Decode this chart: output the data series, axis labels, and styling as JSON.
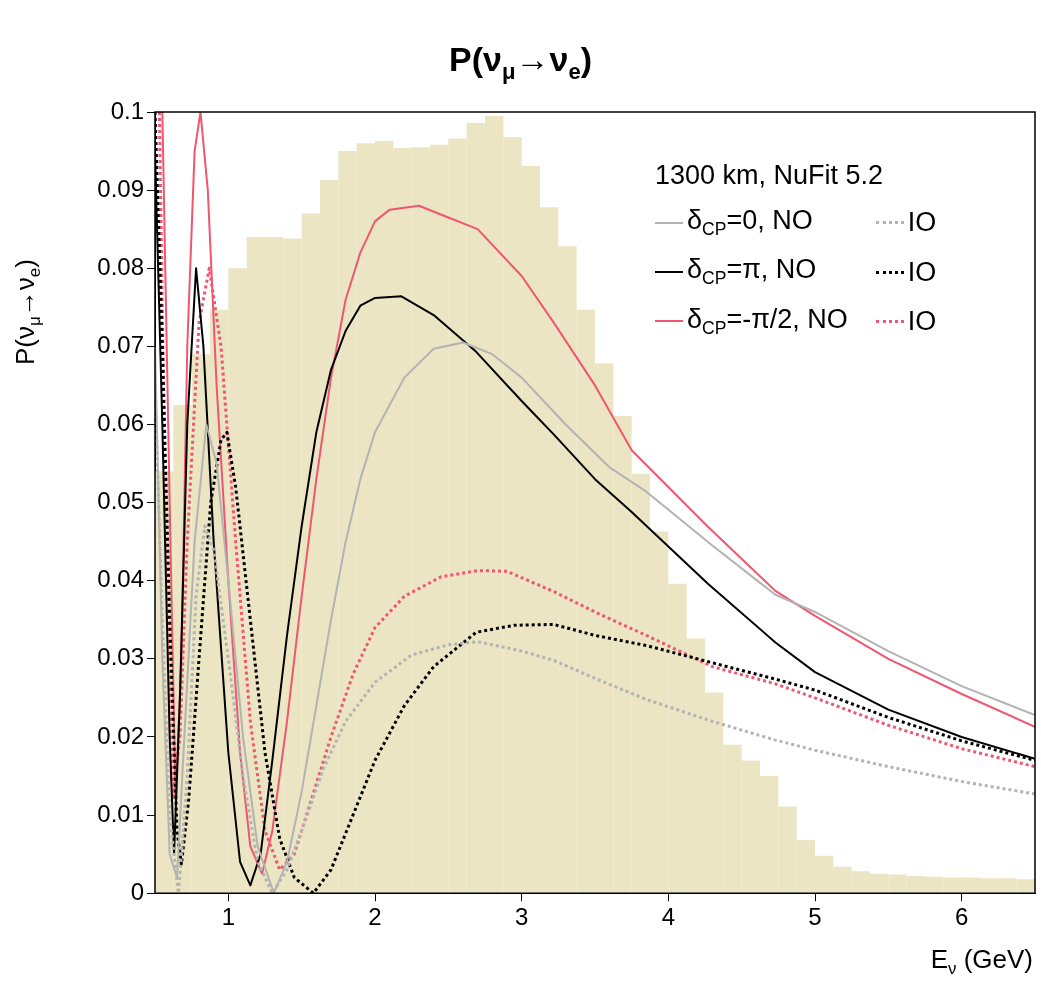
{
  "chart_data": {
    "type": "line",
    "title": "P(ν$_{μ}$→ν$_{e}$)",
    "xlabel": "E$_{ν}$ (GeV)",
    "ylabel": "P(ν$_{μ}$→ν$_{e}$)",
    "legend_title": "1300 km, NuFit 5.2",
    "legend": "top right",
    "grid": false,
    "xlim": [
      0.5,
      6.5
    ],
    "xticks": [
      1,
      2,
      3,
      4,
      5,
      6
    ],
    "ylim": [
      0,
      0.1
    ],
    "yticks": [
      0,
      0.01,
      0.02,
      0.03,
      0.04,
      0.05,
      0.06,
      0.07,
      0.08,
      0.09,
      0.1
    ],
    "series": [
      {
        "type": "histogram",
        "color": "#ebe5c3",
        "bins": [
          0.5,
          0.625,
          0.75,
          0.875,
          1,
          1.125,
          1.25,
          1.375,
          1.5,
          1.625,
          1.75,
          1.875,
          2,
          2.125,
          2.25,
          2.375,
          2.5,
          2.625,
          2.75,
          2.875,
          3,
          3.125,
          3.25,
          3.375,
          3.5,
          3.625,
          3.75,
          3.875,
          4,
          4.125,
          4.25,
          4.375,
          4.5,
          4.625,
          4.75,
          4.875,
          5,
          5.125,
          5.25,
          5.375,
          5.5,
          5.625,
          5.75,
          5.875,
          6,
          6.125,
          6.25,
          6.375,
          6.5
        ],
        "values": [
          0.054,
          0.0625,
          0.069,
          0.0747,
          0.08,
          0.084,
          0.084,
          0.0838,
          0.087,
          0.0913,
          0.095,
          0.096,
          0.0963,
          0.0954,
          0.0955,
          0.0958,
          0.0966,
          0.0986,
          0.0995,
          0.0968,
          0.0931,
          0.0878,
          0.0828,
          0.0747,
          0.0678,
          0.0611,
          0.0537,
          0.0463,
          0.0396,
          0.0326,
          0.0257,
          0.019,
          0.017,
          0.015,
          0.0111,
          0.0068,
          0.0048,
          0.0034,
          0.0028,
          0.0025,
          0.0024,
          0.0022,
          0.0021,
          0.002,
          0.002,
          0.0019,
          0.0019,
          0.0018
        ]
      },
      {
        "name": "δ$_{CP}$=0, NO",
        "color": "#b3b3b3",
        "line_style": "solid",
        "x": [
          0.5,
          0.55,
          0.6,
          0.65,
          0.7,
          0.77,
          0.85,
          0.92,
          1.0,
          1.1,
          1.2,
          1.31,
          1.4,
          1.5,
          1.6,
          1.7,
          1.8,
          1.9,
          2.0,
          2.2,
          2.4,
          2.6,
          2.8,
          3.0,
          3.3,
          3.6,
          3.85,
          4.3,
          4.73,
          5.0,
          5.5,
          6.0,
          6.5
        ],
        "values": [
          0.07,
          0.03,
          0.005,
          0.002,
          0.02,
          0.045,
          0.06,
          0.055,
          0.04,
          0.02,
          0.006,
          0.0,
          0.004,
          0.013,
          0.024,
          0.035,
          0.045,
          0.053,
          0.059,
          0.066,
          0.0697,
          0.0705,
          0.069,
          0.066,
          0.06,
          0.0545,
          0.0514,
          0.0445,
          0.0382,
          0.036,
          0.031,
          0.0265,
          0.0228
        ]
      },
      {
        "name": "IO",
        "color": "#b3b3b3",
        "line_style": "dotted",
        "x": [
          0.5,
          0.55,
          0.6,
          0.66,
          0.72,
          0.78,
          0.84,
          0.9,
          1.0,
          1.1,
          1.2,
          1.3,
          1.4,
          1.5,
          1.65,
          1.8,
          2.0,
          2.25,
          2.5,
          2.7,
          3.0,
          3.22,
          3.5,
          3.85,
          4.3,
          4.73,
          5.0,
          5.5,
          6.0,
          6.5
        ],
        "values": [
          0.065,
          0.035,
          0.01,
          0.0,
          0.015,
          0.038,
          0.047,
          0.044,
          0.03,
          0.015,
          0.004,
          0.0,
          0.003,
          0.008,
          0.016,
          0.022,
          0.027,
          0.0305,
          0.0318,
          0.0322,
          0.031,
          0.0298,
          0.0275,
          0.0248,
          0.022,
          0.0196,
          0.0183,
          0.0162,
          0.0143,
          0.0127
        ]
      },
      {
        "name": "δ$_{CP}$=π, NO",
        "color": "#000000",
        "line_style": "solid",
        "x": [
          0.5,
          0.55,
          0.6,
          0.63,
          0.67,
          0.72,
          0.78,
          0.83,
          0.9,
          1.0,
          1.08,
          1.15,
          1.22,
          1.3,
          1.4,
          1.5,
          1.6,
          1.7,
          1.8,
          1.9,
          2.0,
          2.18,
          2.4,
          2.69,
          3.0,
          3.22,
          3.5,
          3.75,
          4.27,
          4.73,
          5.0,
          5.5,
          6.0,
          6.5
        ],
        "values": [
          0.095,
          0.06,
          0.02,
          0.005,
          0.025,
          0.06,
          0.08,
          0.07,
          0.045,
          0.018,
          0.004,
          0.001,
          0.005,
          0.017,
          0.033,
          0.047,
          0.059,
          0.067,
          0.072,
          0.0752,
          0.0762,
          0.0764,
          0.074,
          0.0693,
          0.063,
          0.0587,
          0.053,
          0.0488,
          0.0396,
          0.0321,
          0.0283,
          0.0235,
          0.02,
          0.0172
        ]
      },
      {
        "name": "IO",
        "color": "#000000",
        "line_style": "dotted",
        "x": [
          0.5,
          0.55,
          0.6,
          0.65,
          0.68,
          0.73,
          0.8,
          0.88,
          0.95,
          0.99,
          1.05,
          1.15,
          1.25,
          1.35,
          1.45,
          1.58,
          1.7,
          1.85,
          2.0,
          2.2,
          2.4,
          2.69,
          2.95,
          3.22,
          3.5,
          3.85,
          4.3,
          4.73,
          5.0,
          5.5,
          6.0,
          6.5
        ],
        "values": [
          0.1,
          0.07,
          0.035,
          0.008,
          0.0037,
          0.012,
          0.03,
          0.05,
          0.058,
          0.059,
          0.052,
          0.035,
          0.018,
          0.007,
          0.002,
          0.0,
          0.003,
          0.01,
          0.017,
          0.024,
          0.029,
          0.0334,
          0.0343,
          0.0344,
          0.033,
          0.0317,
          0.0295,
          0.0274,
          0.026,
          0.0225,
          0.0195,
          0.017
        ]
      },
      {
        "name": "δ$_{CP}$=-π/2, NO",
        "color": "#f0566f",
        "line_style": "solid",
        "x": [
          0.55,
          0.6,
          0.64,
          0.68,
          0.72,
          0.77,
          0.81,
          0.86,
          0.92,
          1.0,
          1.08,
          1.15,
          1.23,
          1.3,
          1.4,
          1.5,
          1.6,
          1.7,
          1.8,
          1.9,
          2.0,
          2.1,
          2.3,
          2.5,
          2.7,
          3.0,
          3.22,
          3.5,
          3.75,
          4.0,
          4.27,
          4.73,
          5.0,
          5.5,
          6.0,
          6.5
        ],
        "values": [
          0.1,
          0.05,
          0.012,
          0.03,
          0.07,
          0.095,
          0.1,
          0.09,
          0.065,
          0.04,
          0.018,
          0.006,
          0.0025,
          0.008,
          0.022,
          0.038,
          0.053,
          0.066,
          0.076,
          0.082,
          0.086,
          0.0875,
          0.088,
          0.0865,
          0.085,
          0.079,
          0.073,
          0.065,
          0.0567,
          0.052,
          0.0469,
          0.0387,
          0.0355,
          0.03,
          0.0255,
          0.0213
        ]
      },
      {
        "name": "IO",
        "color": "#f0566f",
        "line_style": "dotted",
        "x": [
          0.53,
          0.57,
          0.62,
          0.67,
          0.72,
          0.8,
          0.87,
          0.95,
          1.05,
          1.15,
          1.25,
          1.35,
          1.45,
          1.55,
          1.7,
          1.85,
          2.0,
          2.2,
          2.45,
          2.7,
          2.9,
          3.22,
          3.5,
          3.85,
          4.3,
          4.73,
          5.0,
          5.5,
          6.0,
          6.5
        ],
        "values": [
          0.1,
          0.05,
          0.012,
          0.02,
          0.045,
          0.073,
          0.08,
          0.07,
          0.045,
          0.022,
          0.008,
          0.003,
          0.005,
          0.011,
          0.02,
          0.028,
          0.034,
          0.038,
          0.0405,
          0.0413,
          0.0412,
          0.0386,
          0.036,
          0.033,
          0.029,
          0.0268,
          0.025,
          0.0215,
          0.0185,
          0.0162
        ]
      }
    ]
  }
}
